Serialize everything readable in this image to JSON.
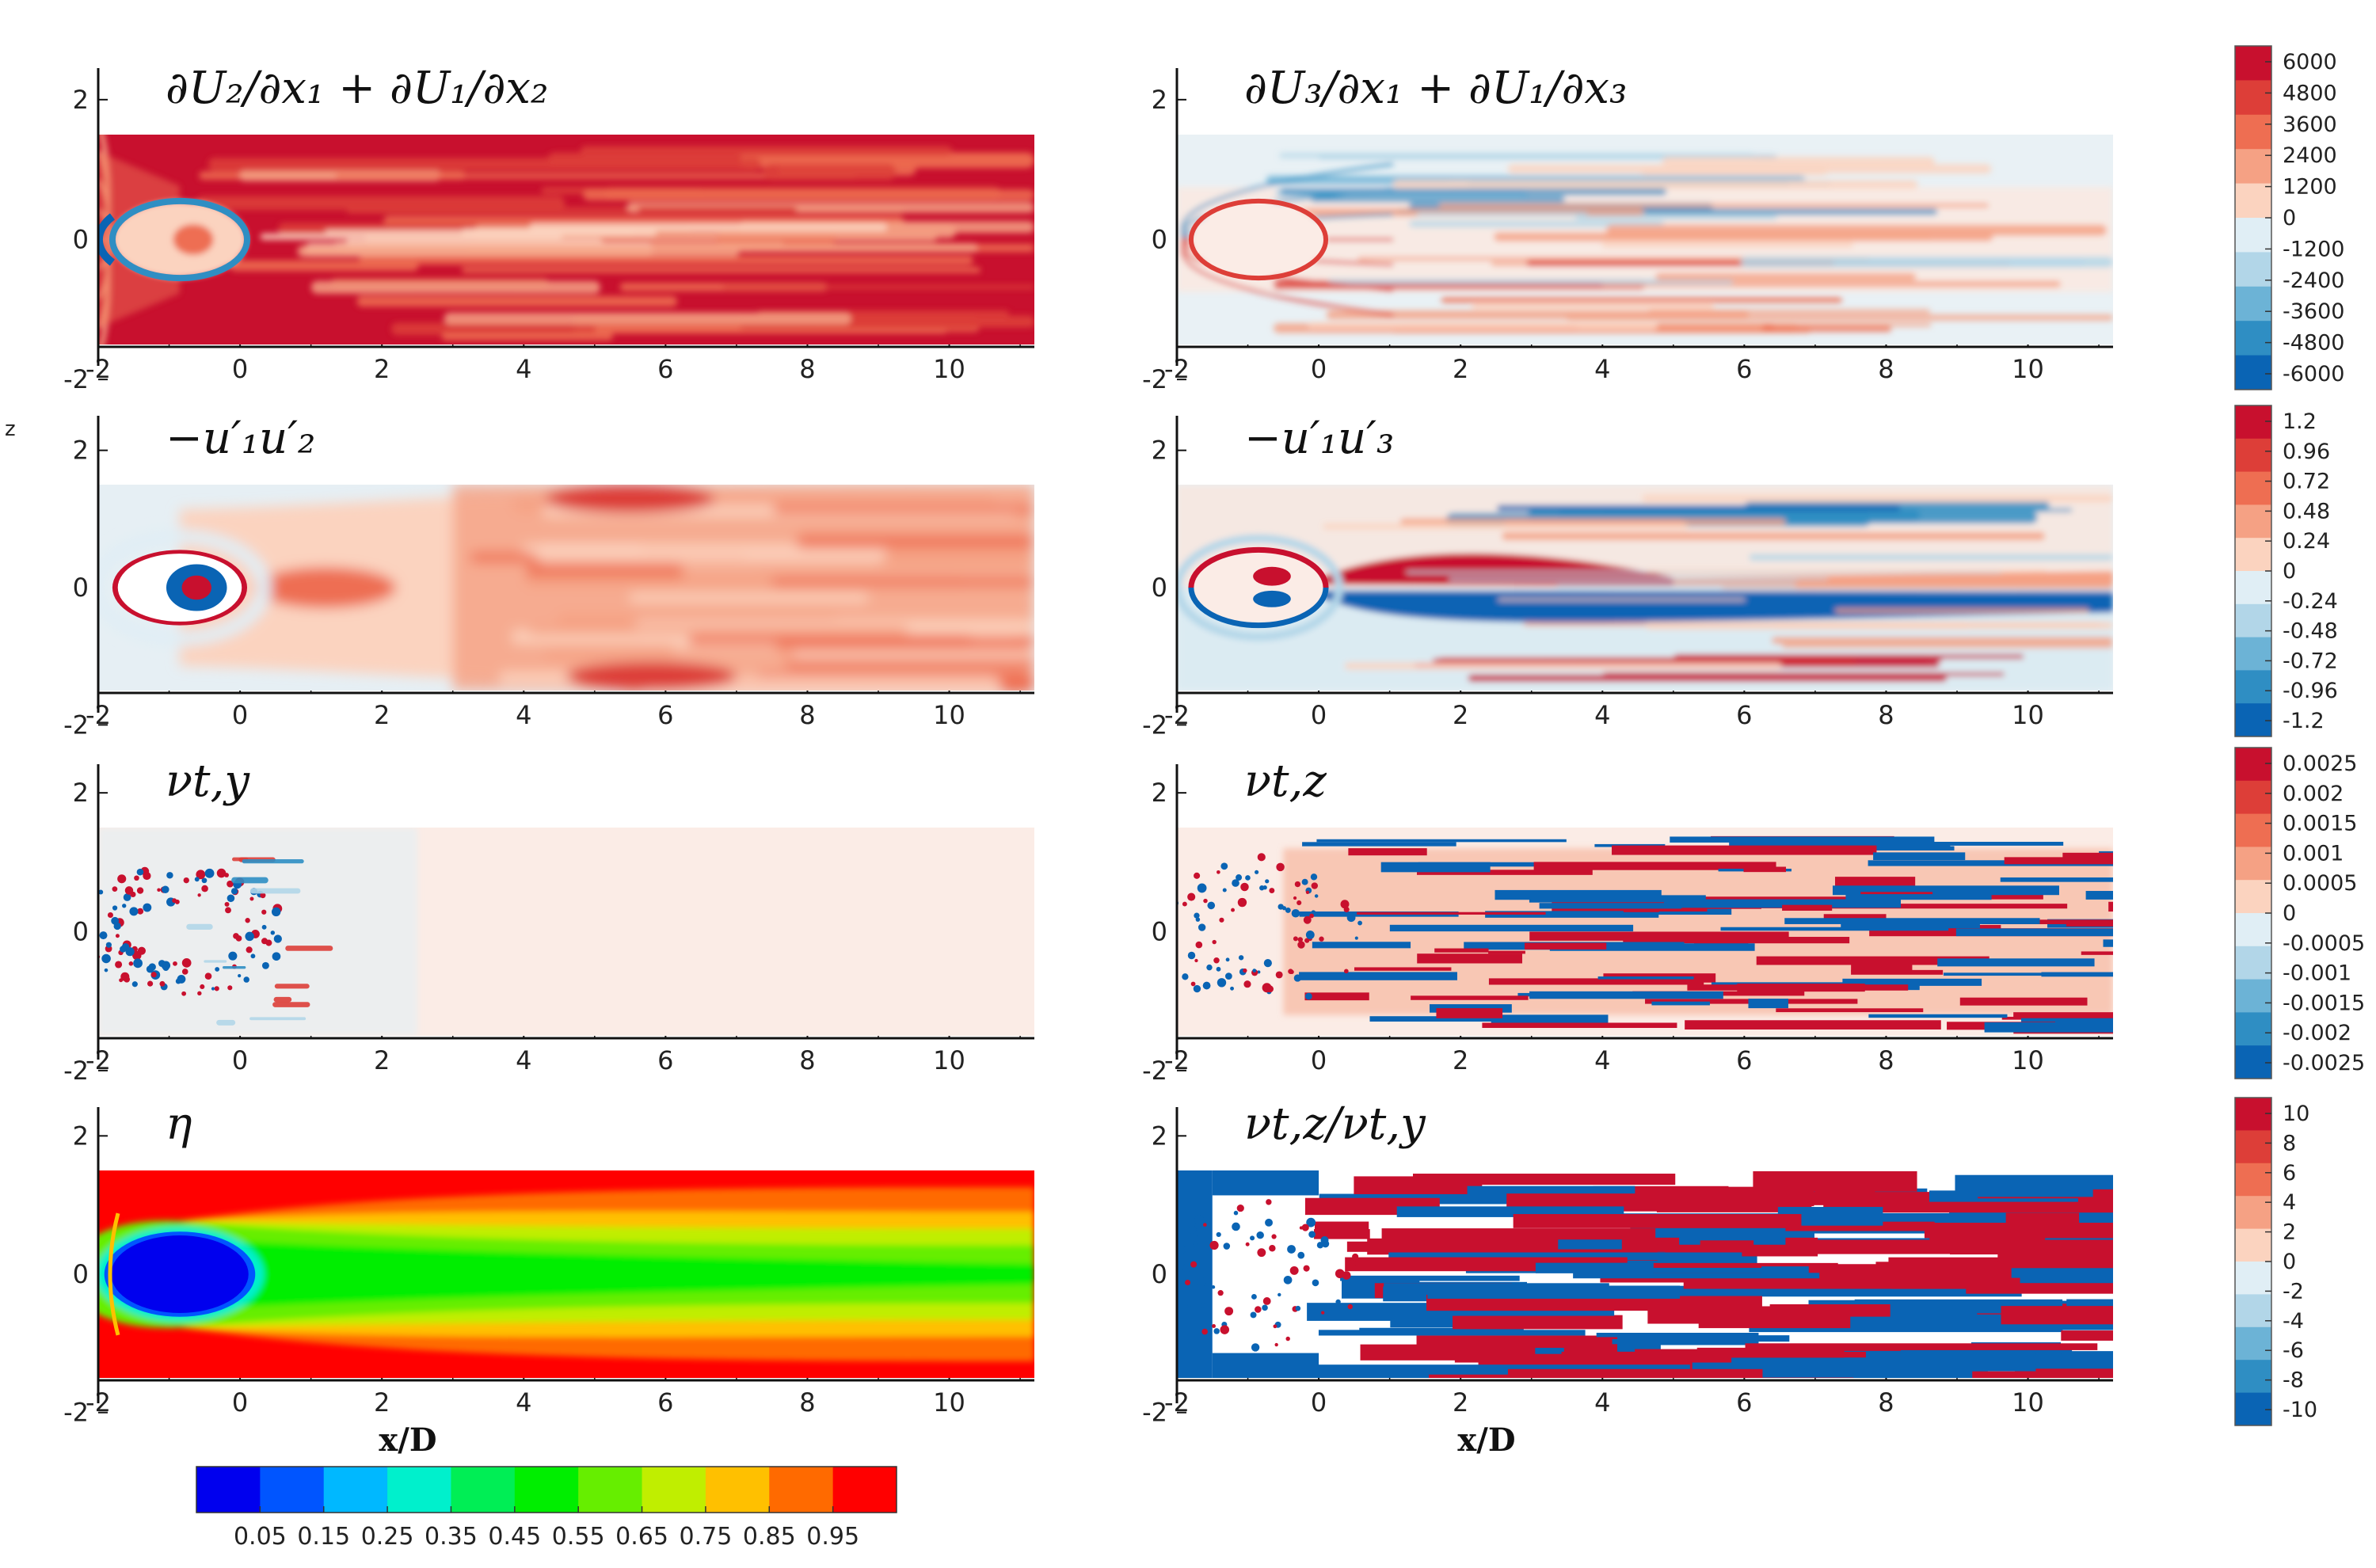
{
  "colors": {
    "div_red": "#c8102e",
    "div_blue": "#0a64b4",
    "eta_scale": [
      "#0000ee",
      "#0055ff",
      "#00b8ff",
      "#00f0cc",
      "#00ee55",
      "#00ee00",
      "#66ee00",
      "#c0ee00",
      "#ffc000",
      "#ff6a00",
      "#ff0000"
    ]
  },
  "chart_data": [
    {
      "type": "heatmap",
      "id": "p1",
      "label": "∂U₂/∂x₁ + ∂U₁/∂x₂",
      "pattern": "dudy_red",
      "xlim": [
        -2,
        11.2
      ],
      "ylim": [
        -1.5,
        1.5
      ],
      "xticks": [
        "-2",
        "0",
        "2",
        "4",
        "6",
        "8",
        "10"
      ],
      "yticks": [
        "2",
        "0",
        "-2"
      ]
    },
    {
      "type": "heatmap",
      "id": "p2",
      "label": "∂U₃/∂x₁ + ∂U₁/∂x₃",
      "pattern": "dudz",
      "xlim": [
        -2,
        11.2
      ],
      "ylim": [
        -1.5,
        1.5
      ],
      "xticks": [
        "-2",
        "0",
        "2",
        "4",
        "6",
        "8",
        "10"
      ],
      "yticks": [
        "2",
        "0",
        "-2"
      ]
    },
    {
      "type": "heatmap",
      "id": "p3",
      "label": "−u′₁u′₂",
      "pattern": "uv",
      "xlim": [
        -2,
        11.2
      ],
      "ylim": [
        -1.5,
        1.5
      ],
      "xticks": [
        "-2",
        "0",
        "2",
        "4",
        "6",
        "8",
        "10"
      ],
      "yticks": [
        "2",
        "0",
        "-2"
      ]
    },
    {
      "type": "heatmap",
      "id": "p4",
      "label": "−u′₁u′₃",
      "pattern": "uw",
      "xlim": [
        -2,
        11.2
      ],
      "ylim": [
        -1.5,
        1.5
      ],
      "xticks": [
        "-2",
        "0",
        "2",
        "4",
        "6",
        "8",
        "10"
      ],
      "yticks": [
        "2",
        "0",
        "-2"
      ]
    },
    {
      "type": "heatmap",
      "id": "p5",
      "label": "νt,y",
      "pattern": "nuy",
      "xlim": [
        -2,
        11.2
      ],
      "ylim": [
        -1.5,
        1.5
      ],
      "xticks": [
        "-2",
        "0",
        "2",
        "4",
        "6",
        "8",
        "10"
      ],
      "yticks": [
        "2",
        "0",
        "-2"
      ]
    },
    {
      "type": "heatmap",
      "id": "p6",
      "label": "νt,z",
      "pattern": "nuz",
      "xlim": [
        -2,
        11.2
      ],
      "ylim": [
        -1.5,
        1.5
      ],
      "xticks": [
        "-2",
        "0",
        "2",
        "4",
        "6",
        "8",
        "10"
      ],
      "yticks": [
        "2",
        "0",
        "-2"
      ]
    },
    {
      "type": "heatmap",
      "id": "p7",
      "label": "η",
      "pattern": "eta",
      "xlim": [
        -2,
        11.2
      ],
      "ylim": [
        -1.5,
        1.5
      ],
      "xticks": [
        "-2",
        "0",
        "2",
        "4",
        "6",
        "8",
        "10"
      ],
      "yticks": [
        "2",
        "0",
        "-2"
      ],
      "xlabel": "x/D"
    },
    {
      "type": "heatmap",
      "id": "p8",
      "label": "νt,z/νt,y",
      "pattern": "ratio",
      "xlim": [
        -2,
        11.2
      ],
      "ylim": [
        -1.5,
        1.5
      ],
      "xticks": [
        "-2",
        "0",
        "2",
        "4",
        "6",
        "8",
        "10"
      ],
      "yticks": [
        "2",
        "0",
        "-2"
      ],
      "xlabel": "x/D"
    }
  ],
  "colorbars": [
    {
      "id": "cb1",
      "labels": [
        "6000",
        "4800",
        "3600",
        "2400",
        "1200",
        "0",
        "-1200",
        "-2400",
        "-3600",
        "-4800",
        "-6000"
      ]
    },
    {
      "id": "cb2",
      "labels": [
        "1.2",
        "0.96",
        "0.72",
        "0.48",
        "0.24",
        "0",
        "-0.24",
        "-0.48",
        "-0.72",
        "-0.96",
        "-1.2"
      ]
    },
    {
      "id": "cb3",
      "labels": [
        "0.0025",
        "0.002",
        "0.0015",
        "0.001",
        "0.0005",
        "0",
        "-0.0005",
        "-0.001",
        "-0.0015",
        "-0.002",
        "-0.0025"
      ]
    },
    {
      "id": "cb4",
      "labels": [
        "10",
        "8",
        "6",
        "4",
        "2",
        "0",
        "-2",
        "-4",
        "-6",
        "-8",
        "-10"
      ]
    }
  ],
  "eta_colorbar": {
    "labels": [
      "0.05",
      "0.15",
      "0.25",
      "0.35",
      "0.45",
      "0.55",
      "0.65",
      "0.75",
      "0.85",
      "0.95"
    ]
  },
  "side_mark": "z"
}
